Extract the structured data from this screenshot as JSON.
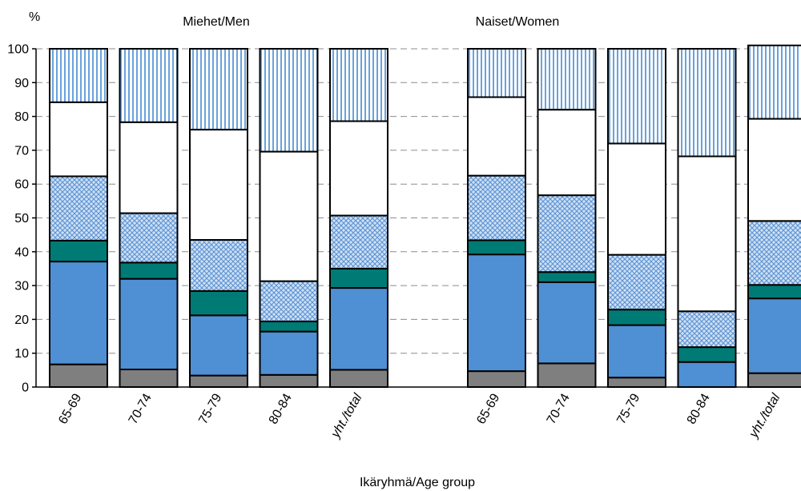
{
  "chart_data": {
    "type": "bar",
    "stacked": true,
    "ylabel": "%",
    "xlabel": "Ikäryhmä/Age group",
    "ylim": [
      0,
      100
    ],
    "yticks": [
      0,
      10,
      20,
      30,
      40,
      50,
      60,
      70,
      80,
      90,
      100
    ],
    "grid": "horizontal dashed",
    "groups": [
      {
        "title": "Miehet/Men",
        "categories": [
          "65-69",
          "70-74",
          "75-79",
          "80-84",
          "yht./total"
        ],
        "series": [
          {
            "color": "#7f7f7f",
            "pattern": "solid",
            "values": [
              6.7,
              5.2,
              3.4,
              3.6,
              5.1
            ]
          },
          {
            "color": "#4f8fd4",
            "pattern": "solid",
            "values": [
              30.4,
              26.8,
              17.8,
              12.8,
              24.2
            ]
          },
          {
            "color": "#007a74",
            "pattern": "solid",
            "values": [
              6.2,
              4.8,
              7.2,
              3.0,
              5.7
            ]
          },
          {
            "color": "#9fc3ea",
            "pattern": "crosshatch",
            "values": [
              19.0,
              14.6,
              15.1,
              11.9,
              15.7
            ]
          },
          {
            "color": "#ffffff",
            "pattern": "solid",
            "values": [
              21.9,
              26.9,
              32.6,
              38.3,
              27.9
            ]
          },
          {
            "color": "#6aa2dc",
            "pattern": "vertical-lines",
            "values": [
              15.8,
              21.7,
              23.9,
              30.4,
              21.4
            ]
          }
        ]
      },
      {
        "title": "Naiset/Women",
        "categories": [
          "65-69",
          "70-74",
          "75-79",
          "80-84",
          "yht./total"
        ],
        "series": [
          {
            "color": "#7f7f7f",
            "pattern": "solid",
            "values": [
              4.7,
              7.0,
              2.8,
              0.0,
              4.1
            ]
          },
          {
            "color": "#4f8fd4",
            "pattern": "solid",
            "values": [
              34.5,
              24.0,
              15.5,
              7.4,
              22.1
            ]
          },
          {
            "color": "#007a74",
            "pattern": "solid",
            "values": [
              4.2,
              3.0,
              4.6,
              4.4,
              4.0
            ]
          },
          {
            "color": "#9fc3ea",
            "pattern": "crosshatch",
            "values": [
              19.1,
              22.7,
              16.2,
              10.6,
              18.9
            ]
          },
          {
            "color": "#ffffff",
            "pattern": "solid",
            "values": [
              23.2,
              25.3,
              32.9,
              45.8,
              30.2
            ]
          },
          {
            "color": "#6aa2dc",
            "pattern": "vertical-lines",
            "values": [
              14.3,
              18.0,
              28.0,
              31.8,
              21.7
            ]
          }
        ]
      }
    ]
  }
}
